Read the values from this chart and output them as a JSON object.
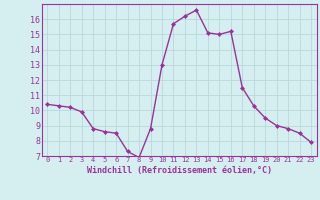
{
  "x": [
    0,
    1,
    2,
    3,
    4,
    5,
    6,
    7,
    8,
    9,
    10,
    11,
    12,
    13,
    14,
    15,
    16,
    17,
    18,
    19,
    20,
    21,
    22,
    23
  ],
  "y": [
    10.4,
    10.3,
    10.2,
    9.9,
    8.8,
    8.6,
    8.5,
    7.3,
    6.9,
    8.8,
    13.0,
    15.7,
    16.2,
    16.6,
    15.1,
    15.0,
    15.2,
    11.5,
    10.3,
    9.5,
    9.0,
    8.8,
    8.5,
    7.9
  ],
  "line_color": "#993399",
  "marker": "D",
  "markersize": 2.0,
  "linewidth": 1.0,
  "bg_color": "#d5eef0",
  "grid_color": "#b8d8dc",
  "xlabel": "Windchill (Refroidissement éolien,°C)",
  "xlabel_color": "#993399",
  "tick_color": "#993399",
  "xlim_min": -0.5,
  "xlim_max": 23.5,
  "ylim_min": 7,
  "ylim_max": 17,
  "yticks": [
    7,
    8,
    9,
    10,
    11,
    12,
    13,
    14,
    15,
    16
  ],
  "xticks": [
    0,
    1,
    2,
    3,
    4,
    5,
    6,
    7,
    8,
    9,
    10,
    11,
    12,
    13,
    14,
    15,
    16,
    17,
    18,
    19,
    20,
    21,
    22,
    23
  ]
}
